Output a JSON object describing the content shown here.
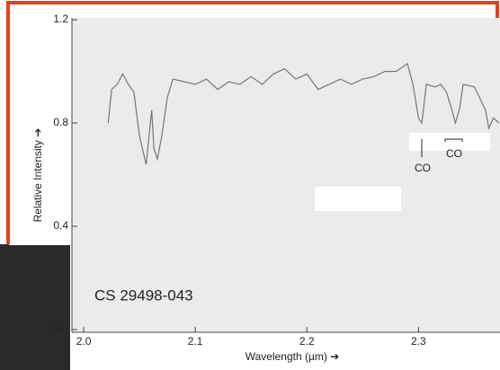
{
  "chart_data": {
    "type": "line",
    "xlabel": "Wavelength (µm) ➔",
    "ylabel": "Relative Intensity ➔",
    "annotations": [
      "CS 29498-043",
      "CO",
      "CO"
    ],
    "x": [
      2.022,
      2.025,
      2.03,
      2.035,
      2.04,
      2.045,
      2.05,
      2.056,
      2.061,
      2.063,
      2.066,
      2.07,
      2.075,
      2.08,
      2.09,
      2.1,
      2.11,
      2.12,
      2.13,
      2.14,
      2.15,
      2.16,
      2.17,
      2.18,
      2.19,
      2.2,
      2.21,
      2.22,
      2.23,
      2.24,
      2.25,
      2.26,
      2.27,
      2.28,
      2.29,
      2.295,
      2.3,
      2.303,
      2.307,
      2.315,
      2.32,
      2.325,
      2.33,
      2.333,
      2.337,
      2.34,
      2.35,
      2.36,
      2.363,
      2.367,
      2.372
    ],
    "series": [
      {
        "name": "CS 29498-043",
        "color": "#777777",
        "values": [
          0.8,
          0.93,
          0.95,
          0.99,
          0.95,
          0.92,
          0.75,
          0.64,
          0.85,
          0.7,
          0.66,
          0.75,
          0.9,
          0.97,
          0.96,
          0.95,
          0.97,
          0.93,
          0.96,
          0.95,
          0.98,
          0.95,
          0.99,
          1.01,
          0.97,
          0.99,
          0.93,
          0.95,
          0.97,
          0.95,
          0.97,
          0.98,
          1.0,
          1.0,
          1.03,
          0.95,
          0.82,
          0.8,
          0.95,
          0.94,
          0.95,
          0.92,
          0.85,
          0.8,
          0.86,
          0.95,
          0.94,
          0.85,
          0.78,
          0.82,
          0.8
        ]
      }
    ],
    "xlim": [
      1.9895,
      2.373
    ],
    "ylim": [
      0,
      1.2
    ],
    "xticks": [
      {
        "value": 2,
        "label": "2.0"
      },
      2.1,
      2.2,
      2.3
    ],
    "yticks": [
      {
        "value": 0,
        "label": "0.0"
      },
      0.4,
      0.8,
      1.2
    ]
  }
}
